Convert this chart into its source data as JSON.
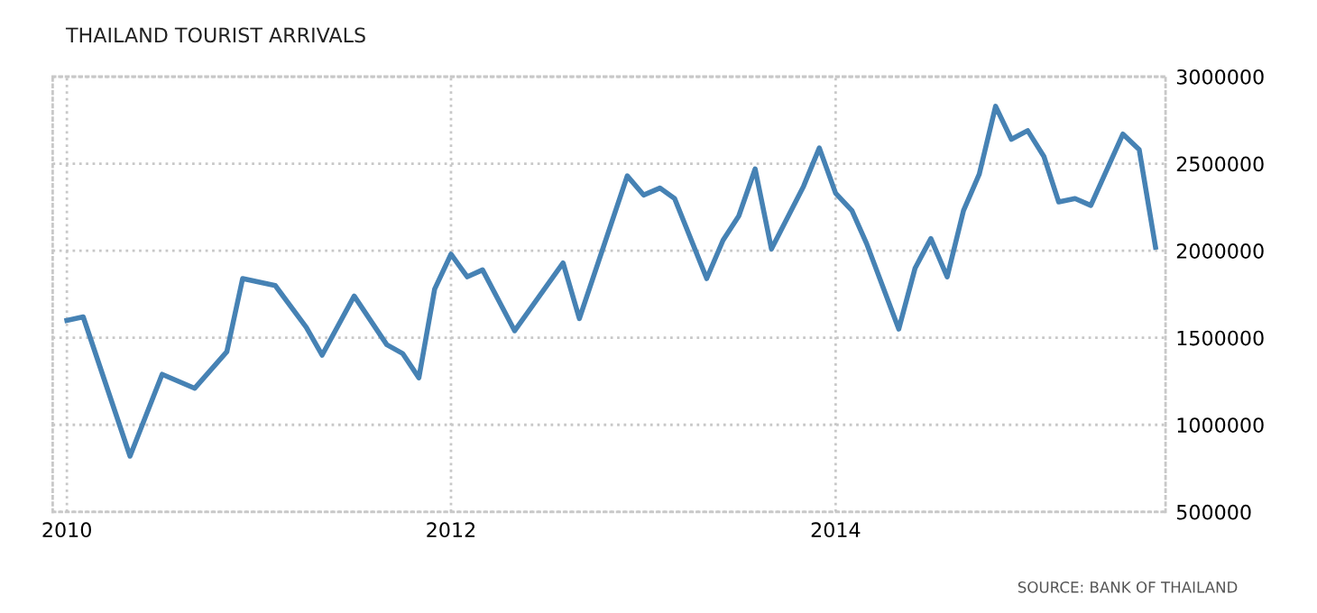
{
  "chart_data": {
    "type": "line",
    "title": "THAILAND TOURIST ARRIVALS",
    "annotations": [
      "SOURCE: BANK OF THAILAND"
    ],
    "x": [
      "2010-01",
      "2010-02",
      "2010-05",
      "2010-07",
      "2010-09",
      "2010-11",
      "2010-12",
      "2011-02",
      "2011-04",
      "2011-05",
      "2011-07",
      "2011-09",
      "2011-10",
      "2011-11",
      "2011-12",
      "2012-01",
      "2012-02",
      "2012-03",
      "2012-05",
      "2012-08",
      "2012-09",
      "2012-12",
      "2013-01",
      "2013-02",
      "2013-03",
      "2013-05",
      "2013-06",
      "2013-07",
      "2013-08",
      "2013-09",
      "2013-11",
      "2013-12",
      "2014-01",
      "2014-02",
      "2014-03",
      "2014-05",
      "2014-06",
      "2014-07",
      "2014-08",
      "2014-09",
      "2014-10",
      "2014-11",
      "2014-12",
      "2015-01",
      "2015-02",
      "2015-03",
      "2015-04",
      "2015-05",
      "2015-07",
      "2015-08",
      "2015-09"
    ],
    "series": [
      {
        "color": "#4682b4",
        "values": [
          1600000,
          1620000,
          820000,
          1290000,
          1210000,
          1420000,
          1840000,
          1800000,
          1560000,
          1400000,
          1740000,
          1460000,
          1410000,
          1270000,
          1780000,
          1980000,
          1850000,
          1890000,
          1540000,
          1930000,
          1610000,
          2430000,
          2320000,
          2360000,
          2300000,
          1840000,
          2060000,
          2200000,
          2470000,
          2010000,
          2370000,
          2590000,
          2330000,
          2230000,
          2040000,
          1550000,
          1900000,
          2070000,
          1850000,
          2230000,
          2440000,
          2830000,
          2640000,
          2690000,
          2540000,
          2280000,
          2300000,
          2260000,
          2670000,
          2580000,
          2020000
        ]
      }
    ],
    "xlim": [
      "2009-12-05",
      "2015-09-20"
    ],
    "ylim": [
      500000,
      3000000
    ],
    "xticks": [
      "2010",
      "2012",
      "2014"
    ],
    "yticks": [
      500000,
      1000000,
      1500000,
      2000000,
      2500000,
      3000000
    ],
    "grid": true,
    "legend": false,
    "marker": "none",
    "line_style": "solid"
  }
}
